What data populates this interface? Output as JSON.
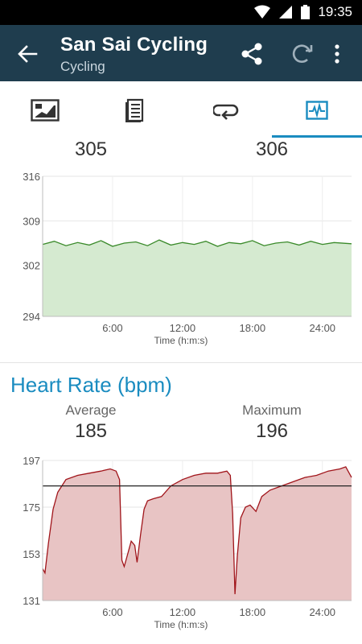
{
  "status_bar": {
    "time": "19:35",
    "icons": [
      "wifi-icon",
      "signal-icon",
      "battery-icon"
    ]
  },
  "app_bar": {
    "title": "San Sai Cycling",
    "subtitle": "Cycling",
    "actions": [
      "share-icon",
      "refresh-icon",
      "more-icon"
    ]
  },
  "tabs": [
    {
      "icon": "map-icon",
      "selected": false
    },
    {
      "icon": "list-icon",
      "selected": false
    },
    {
      "icon": "laps-icon",
      "selected": false
    },
    {
      "icon": "chart-icon",
      "selected": true
    }
  ],
  "colors": {
    "appbar": "#1f3d4e",
    "accent": "#1a8cc0",
    "power_line": "#3a8a2a",
    "power_fill": "#d5ead0",
    "hr_line": "#a0141a",
    "hr_fill": "#e8c4c4"
  },
  "power_section": {
    "average": "305",
    "maximum": "306"
  },
  "heart_rate_section": {
    "title": "Heart Rate (bpm)",
    "average_label": "Average",
    "average": "185",
    "maximum_label": "Maximum",
    "maximum": "196"
  },
  "chart_data": [
    {
      "type": "area",
      "title": "",
      "xlabel": "Time (h:m:s)",
      "ylabel": "",
      "x_ticks": [
        "6:00",
        "12:00",
        "18:00",
        "24:00"
      ],
      "y_ticks": [
        "316",
        "309",
        "302",
        "294"
      ],
      "ylim": [
        294,
        316
      ],
      "xlim": [
        0,
        26.5
      ],
      "grid": true,
      "series": [
        {
          "x": [
            0,
            1,
            2,
            3,
            4,
            5,
            6,
            7,
            8,
            9,
            10,
            11,
            12,
            13,
            14,
            15,
            16,
            17,
            18,
            19,
            20,
            21,
            22,
            23,
            24,
            25,
            26.5
          ],
          "values": [
            305.3,
            305.8,
            305.1,
            305.6,
            305.2,
            305.9,
            305.0,
            305.5,
            305.7,
            305.1,
            306.0,
            305.2,
            305.6,
            305.3,
            305.8,
            305.0,
            305.6,
            305.4,
            305.9,
            305.1,
            305.5,
            305.7,
            305.2,
            305.8,
            305.3,
            305.6,
            305.4
          ]
        }
      ]
    },
    {
      "type": "area",
      "title": "Heart Rate (bpm)",
      "xlabel": "Time (h:m:s)",
      "ylabel": "",
      "x_ticks": [
        "6:00",
        "12:00",
        "18:00",
        "24:00"
      ],
      "y_ticks": [
        "197",
        "175",
        "153",
        "131"
      ],
      "ylim": [
        131,
        197
      ],
      "xlim": [
        0,
        26.5
      ],
      "grid": true,
      "reference_line": 185,
      "series": [
        {
          "x": [
            0,
            0.2,
            0.5,
            0.9,
            1.3,
            2,
            3,
            4,
            5,
            5.8,
            6.3,
            6.6,
            6.8,
            7.0,
            7.3,
            7.6,
            7.9,
            8.1,
            8.4,
            8.7,
            9.0,
            9.5,
            10.2,
            11,
            12,
            13,
            14,
            15,
            15.8,
            16.1,
            16.3,
            16.5,
            16.7,
            17.0,
            17.4,
            17.8,
            18.3,
            18.8,
            19.5,
            20.5,
            21.5,
            22.5,
            23.5,
            24.5,
            25.5,
            26.0,
            26.5
          ],
          "values": [
            146,
            144,
            158,
            174,
            182,
            188,
            190,
            191,
            192,
            193,
            192,
            188,
            150,
            147,
            153,
            159,
            157,
            149,
            162,
            174,
            178,
            179,
            180,
            185,
            188,
            190,
            191,
            191,
            192,
            190,
            172,
            134,
            152,
            170,
            175,
            176,
            173,
            180,
            183,
            185,
            187,
            189,
            190,
            192,
            193,
            194,
            189
          ]
        }
      ]
    }
  ]
}
